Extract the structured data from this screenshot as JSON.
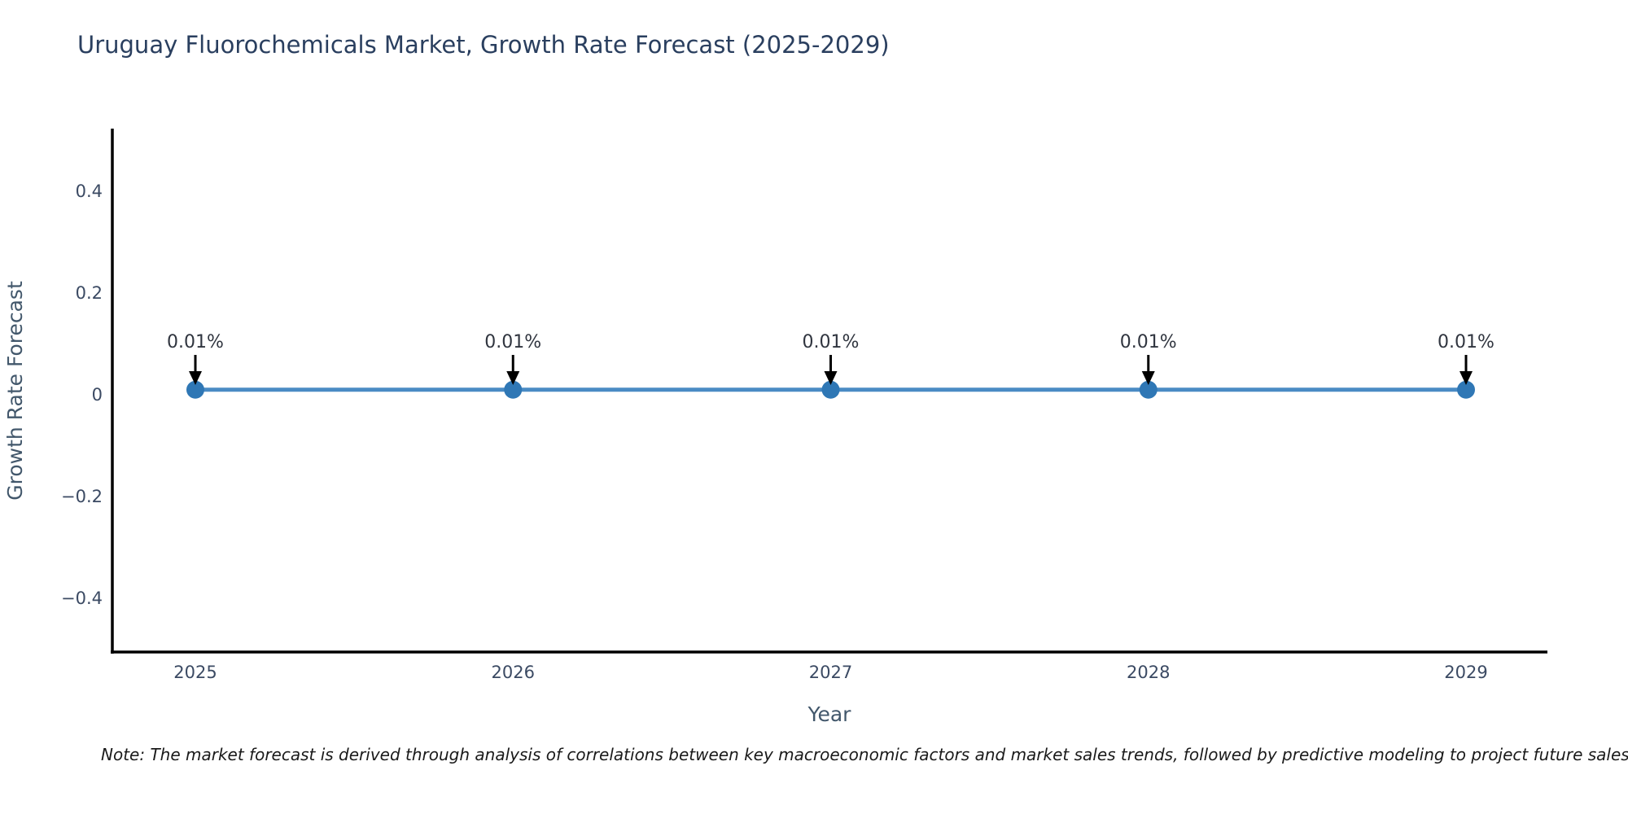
{
  "note": "Note: The market forecast is derived through analysis of correlations between key macroeconomic factors and market sales trends, followed by predictive modeling to project future sales.",
  "colors": {
    "background": "#ffffff",
    "title": "#2a3f5f",
    "axis": "#000000",
    "tick_label": "#3b4a63",
    "axis_label": "#42576b",
    "line": "#4a8bc4",
    "marker": "#2f77b5",
    "annotation_text": "#30353f",
    "arrow": "#000000",
    "note_text": "#1a1a1a"
  },
  "chart_data": {
    "type": "line",
    "title": "Uruguay Fluorochemicals Market, Growth Rate Forecast (2025-2029)",
    "xlabel": "Year",
    "ylabel": "Growth Rate Forecast",
    "x": [
      2025,
      2026,
      2027,
      2028,
      2029
    ],
    "values": [
      0.01,
      0.01,
      0.01,
      0.01,
      0.01
    ],
    "point_labels": [
      "0.01%",
      "0.01%",
      "0.01%",
      "0.01%",
      "0.01%"
    ],
    "xtick_labels": [
      "2025",
      "2026",
      "2027",
      "2028",
      "2029"
    ],
    "yticks": [
      0.4,
      0.2,
      0,
      -0.2,
      -0.4
    ],
    "ytick_labels": [
      "0.4",
      "0.2",
      "0",
      "−0.2",
      "−0.4"
    ],
    "ylim": [
      -0.5,
      0.52
    ],
    "grid": false,
    "legend": "none",
    "marker_size": 11,
    "line_width": 5
  }
}
